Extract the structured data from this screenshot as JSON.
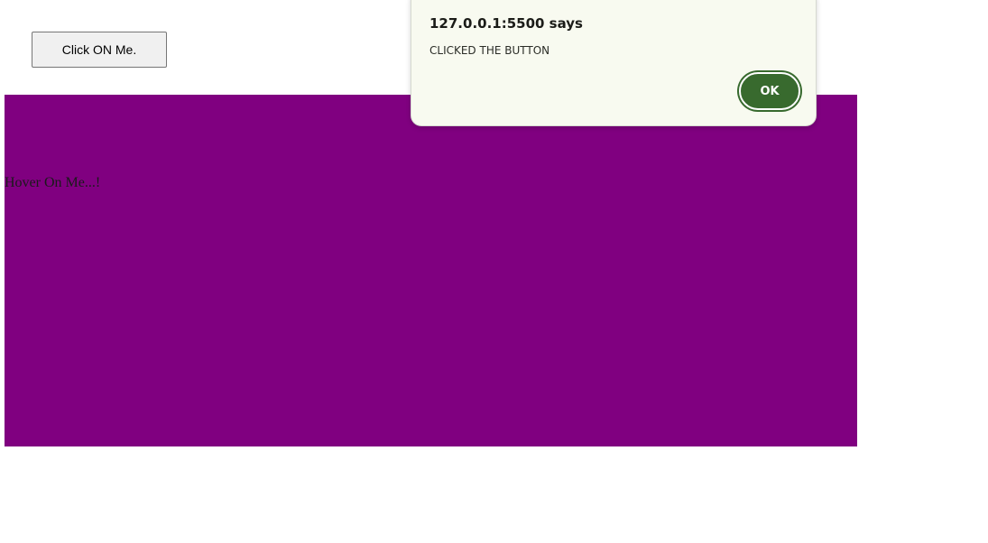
{
  "page": {
    "button_label": "Click ON Me.",
    "hover_text": "Hover On Me...!"
  },
  "alert": {
    "origin": "127.0.0.1:5500 says",
    "message": "CLICKED THE BUTTON",
    "ok_label": "OK"
  },
  "colors": {
    "hover_box_bg": "#800080",
    "dialog_bg": "#f8faf0",
    "ok_button_bg": "#386a2e",
    "ok_button_ring": "#386a2e"
  }
}
